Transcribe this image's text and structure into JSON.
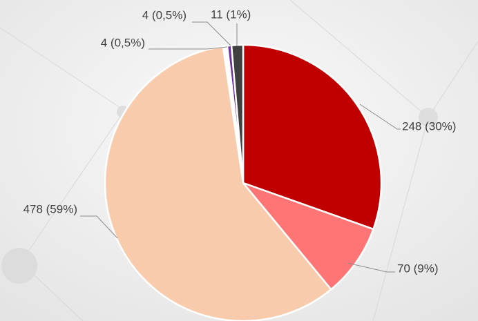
{
  "chart_data": {
    "type": "pie",
    "values": [
      248,
      70,
      478,
      4,
      4,
      11
    ],
    "value_labels": [
      "248 (30%)",
      "70 (9%)",
      "478 (59%)",
      "4 (0,5%)",
      "4 (0,5%)",
      "11 (1%)"
    ],
    "colors": [
      "#c00000",
      "#ff7575",
      "#f8cbad",
      "#ffffff",
      "#7030a0",
      "#404040"
    ]
  }
}
